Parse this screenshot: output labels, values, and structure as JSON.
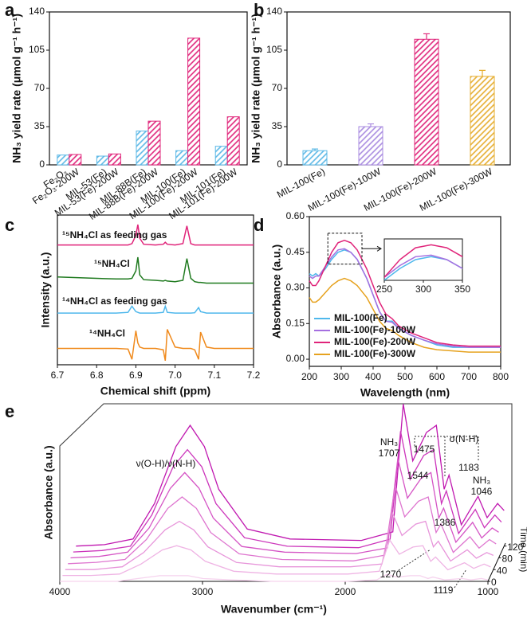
{
  "chart_data": [
    {
      "panel": "a",
      "type": "bar",
      "categories": [
        "Fe₂O₃",
        "Fe₂O₃-200W",
        "MIL-53(Fe)",
        "MIL-53(Fe)-200W",
        "MIL-88B(Fe)",
        "MIL-88B(Fe)-200W",
        "MIL-100(Fe)",
        "MIL-100(Fe)-200W",
        "MIL-101(Fe)",
        "MIL-101(Fe)-200W"
      ],
      "values": [
        9,
        9.5,
        8,
        10,
        31,
        40,
        13,
        116,
        17,
        44
      ],
      "colors": [
        "#5bb8e6",
        "#e0247a",
        "#5bb8e6",
        "#e0247a",
        "#5bb8e6",
        "#e0247a",
        "#5bb8e6",
        "#e0247a",
        "#5bb8e6",
        "#e0247a"
      ],
      "ylabel": "NH₃ yield rate (μmol g⁻¹ h⁻¹)",
      "ylim": [
        0,
        140
      ],
      "yticks": [
        0,
        35,
        70,
        105,
        140
      ],
      "hatch": true
    },
    {
      "panel": "b",
      "type": "bar",
      "categories": [
        "MIL-100(Fe)",
        "MIL-100(Fe)-100W",
        "MIL-100(Fe)-200W",
        "MIL-100(Fe)-300W"
      ],
      "values": [
        13,
        35,
        115,
        81
      ],
      "errors": [
        1.5,
        2.5,
        5,
        5.5
      ],
      "colors": [
        "#5bb8e6",
        "#a98be0",
        "#e0247a",
        "#e6ad2e"
      ],
      "ylabel": "NH₃ yield rate (μmol g⁻¹ h⁻¹)",
      "ylim": [
        0,
        140
      ],
      "yticks": [
        0,
        35,
        70,
        105,
        140
      ],
      "hatch": true
    },
    {
      "panel": "c",
      "type": "line",
      "xlabel": "Chemical shift (ppm)",
      "ylabel": "Intensity (a.u.)",
      "xlim": [
        6.7,
        7.2
      ],
      "xticks": [
        6.7,
        6.8,
        6.9,
        {
          "value": 7,
          "label": "7.0"
        },
        7.1,
        7.2
      ],
      "ylim": [
        0,
        11
      ],
      "x": [
        6.7,
        6.8,
        6.85,
        6.88,
        6.89,
        6.9,
        6.905,
        6.91,
        6.92,
        6.95,
        6.97,
        6.975,
        6.98,
        7.0,
        7.02,
        7.03,
        7.04,
        7.05,
        7.06,
        7.065,
        7.08,
        7.1,
        7.2
      ],
      "series": [
        {
          "name": "¹⁵NH₄Cl as feeding gas",
          "color": "#e0247a",
          "values": [
            8.8,
            8.8,
            8.8,
            8.8,
            8.9,
            9.5,
            10.3,
            9.3,
            8.85,
            8.8,
            8.85,
            9.0,
            8.85,
            8.8,
            8.9,
            10.2,
            8.9,
            8.8,
            8.8,
            8.8,
            8.8,
            8.8,
            8.8
          ]
        },
        {
          "name": "¹⁵NH₄Cl",
          "color": "#1f7a1f",
          "values": [
            6.45,
            6.35,
            6.3,
            6.3,
            6.35,
            6.9,
            7.9,
            6.6,
            6.25,
            6.2,
            6.15,
            6.2,
            6.15,
            6.1,
            6.2,
            7.8,
            6.35,
            6.1,
            6.05,
            6.05,
            6.0,
            6.0,
            6.0
          ]
        },
        {
          "name": "¹⁴NH₄Cl as feeding gas",
          "color": "#4fb8ec",
          "values": [
            3.8,
            3.8,
            3.8,
            3.85,
            4.3,
            3.9,
            3.85,
            3.8,
            3.8,
            3.8,
            3.85,
            4.3,
            3.85,
            3.8,
            3.8,
            3.8,
            3.8,
            3.82,
            4.2,
            3.9,
            3.8,
            3.8,
            3.8
          ]
        },
        {
          "name": "¹⁴NH₄Cl",
          "color": "#f08a1c",
          "values": [
            1.2,
            1.2,
            1.2,
            1.15,
            0.4,
            2.5,
            1.6,
            1.3,
            1.2,
            1.2,
            1.1,
            0.3,
            2.6,
            1.3,
            1.2,
            1.2,
            1.2,
            1.1,
            0.4,
            2.4,
            1.3,
            1.2,
            1.2
          ]
        }
      ]
    },
    {
      "panel": "d",
      "type": "line",
      "xlabel": "Wavelength (nm)",
      "ylabel": "Absorbance (a.u.)",
      "xlim": [
        200,
        800
      ],
      "xticks": [
        200,
        300,
        400,
        500,
        600,
        700,
        800
      ],
      "ylim": [
        -0.03,
        0.6
      ],
      "yticks": [
        {
          "value": 0,
          "label": "0.00"
        },
        {
          "value": 0.15,
          "label": "0.15"
        },
        {
          "value": 0.3,
          "label": "0.30"
        },
        {
          "value": 0.45,
          "label": "0.45"
        },
        {
          "value": 0.6,
          "label": "0.60"
        }
      ],
      "legend": "lower left",
      "x": [
        200,
        210,
        220,
        230,
        250,
        270,
        290,
        310,
        330,
        350,
        380,
        420,
        440,
        460,
        480,
        520,
        560,
        600,
        650,
        700,
        750,
        800
      ],
      "series": [
        {
          "name": "MIL-100(Fe)",
          "color": "#4fb8ec",
          "values": [
            0.36,
            0.35,
            0.36,
            0.35,
            0.38,
            0.42,
            0.45,
            0.46,
            0.45,
            0.42,
            0.34,
            0.2,
            0.16,
            0.16,
            0.13,
            0.1,
            0.08,
            0.06,
            0.05,
            0.05,
            0.05,
            0.05
          ]
        },
        {
          "name": "MIL-100(Fe)-100W",
          "color": "#a56fe0",
          "values": [
            0.35,
            0.34,
            0.35,
            0.35,
            0.39,
            0.43,
            0.46,
            0.465,
            0.45,
            0.42,
            0.34,
            0.2,
            0.16,
            0.155,
            0.13,
            0.1,
            0.08,
            0.065,
            0.055,
            0.05,
            0.05,
            0.05
          ]
        },
        {
          "name": "MIL-100(Fe)-200W",
          "color": "#e0247a",
          "values": [
            0.33,
            0.31,
            0.31,
            0.33,
            0.39,
            0.45,
            0.49,
            0.5,
            0.49,
            0.46,
            0.38,
            0.24,
            0.19,
            0.17,
            0.14,
            0.11,
            0.09,
            0.07,
            0.06,
            0.055,
            0.055,
            0.055
          ]
        },
        {
          "name": "MIL-100(Fe)-300W",
          "color": "#e6a21f",
          "values": [
            0.26,
            0.24,
            0.24,
            0.25,
            0.28,
            0.31,
            0.33,
            0.34,
            0.33,
            0.31,
            0.26,
            0.16,
            0.13,
            0.12,
            0.1,
            0.07,
            0.05,
            0.04,
            0.035,
            0.03,
            0.03,
            0.03
          ]
        }
      ],
      "inset": {
        "xlim": [
          250,
          350
        ],
        "xticks": [
          250,
          300,
          350
        ],
        "ylim": [
          0.38,
          0.52
        ]
      }
    },
    {
      "panel": "e",
      "type": "waterfall",
      "xlabel": "Wavenumber (cm⁻¹)",
      "ylabel": "Absorbance (a.u.)",
      "xlim": [
        4000,
        1000
      ],
      "xticks": [
        4000,
        3000,
        2000,
        1000
      ],
      "ylim": [
        0,
        1.25
      ],
      "zlabel": "Time (min)",
      "zlim": [
        0,
        130
      ],
      "zticks": [
        0,
        40,
        80,
        120
      ],
      "x": [
        4000,
        3800,
        3600,
        3450,
        3300,
        3200,
        3100,
        3000,
        2800,
        2500,
        2000,
        1780,
        1707,
        1640,
        1544,
        1475,
        1420,
        1386,
        1300,
        1183,
        1119,
        1046,
        1000
      ],
      "series": [
        {
          "time": 0,
          "color": "#f6d3ee",
          "values": [
            0,
            0,
            0,
            0.02,
            0.04,
            0.04,
            0.04,
            0.02,
            0.01,
            0,
            0,
            0.01,
            0.05,
            0.03,
            0.04,
            0.04,
            0.02,
            0.03,
            0.01,
            0.02,
            0.01,
            0.02,
            0.01
          ]
        },
        {
          "time": 20,
          "color": "#efb4e4",
          "values": [
            0,
            0,
            0.01,
            0.08,
            0.18,
            0.21,
            0.18,
            0.1,
            0.03,
            0.01,
            0.01,
            0.03,
            0.25,
            0.15,
            0.2,
            0.21,
            0.1,
            0.13,
            0.04,
            0.09,
            0.05,
            0.08,
            0.06
          ]
        },
        {
          "time": 40,
          "color": "#e795da",
          "values": [
            0,
            0,
            0.02,
            0.12,
            0.28,
            0.34,
            0.28,
            0.16,
            0.05,
            0.02,
            0.02,
            0.04,
            0.4,
            0.24,
            0.32,
            0.34,
            0.16,
            0.2,
            0.06,
            0.14,
            0.08,
            0.12,
            0.1
          ]
        },
        {
          "time": 60,
          "color": "#de75cf",
          "values": [
            0,
            0.01,
            0.03,
            0.17,
            0.39,
            0.47,
            0.39,
            0.22,
            0.07,
            0.03,
            0.02,
            0.06,
            0.55,
            0.33,
            0.44,
            0.47,
            0.22,
            0.28,
            0.08,
            0.19,
            0.11,
            0.17,
            0.14
          ]
        },
        {
          "time": 80,
          "color": "#d555c5",
          "values": [
            0,
            0.01,
            0.04,
            0.21,
            0.49,
            0.6,
            0.49,
            0.28,
            0.08,
            0.04,
            0.03,
            0.07,
            0.7,
            0.42,
            0.56,
            0.6,
            0.28,
            0.35,
            0.11,
            0.25,
            0.14,
            0.21,
            0.18
          ]
        },
        {
          "time": 100,
          "color": "#cc35bb",
          "values": [
            0,
            0.01,
            0.04,
            0.26,
            0.6,
            0.72,
            0.6,
            0.34,
            0.1,
            0.04,
            0.03,
            0.09,
            0.85,
            0.51,
            0.68,
            0.72,
            0.34,
            0.43,
            0.13,
            0.3,
            0.17,
            0.26,
            0.21
          ]
        },
        {
          "time": 120,
          "color": "#c018b0",
          "values": [
            0,
            0.01,
            0.05,
            0.3,
            0.7,
            0.85,
            0.7,
            0.4,
            0.12,
            0.05,
            0.04,
            0.1,
            1.0,
            0.6,
            0.8,
            0.85,
            0.4,
            0.5,
            0.15,
            0.35,
            0.2,
            0.3,
            0.25
          ]
        }
      ],
      "annotations": [
        "ν(O-H)/ν(N-H)",
        "NH₃",
        "1707",
        "1475",
        "σ(N-H)",
        "1544",
        "1183",
        "1386",
        "NH₃",
        "1046",
        "1270",
        "1119"
      ]
    }
  ]
}
